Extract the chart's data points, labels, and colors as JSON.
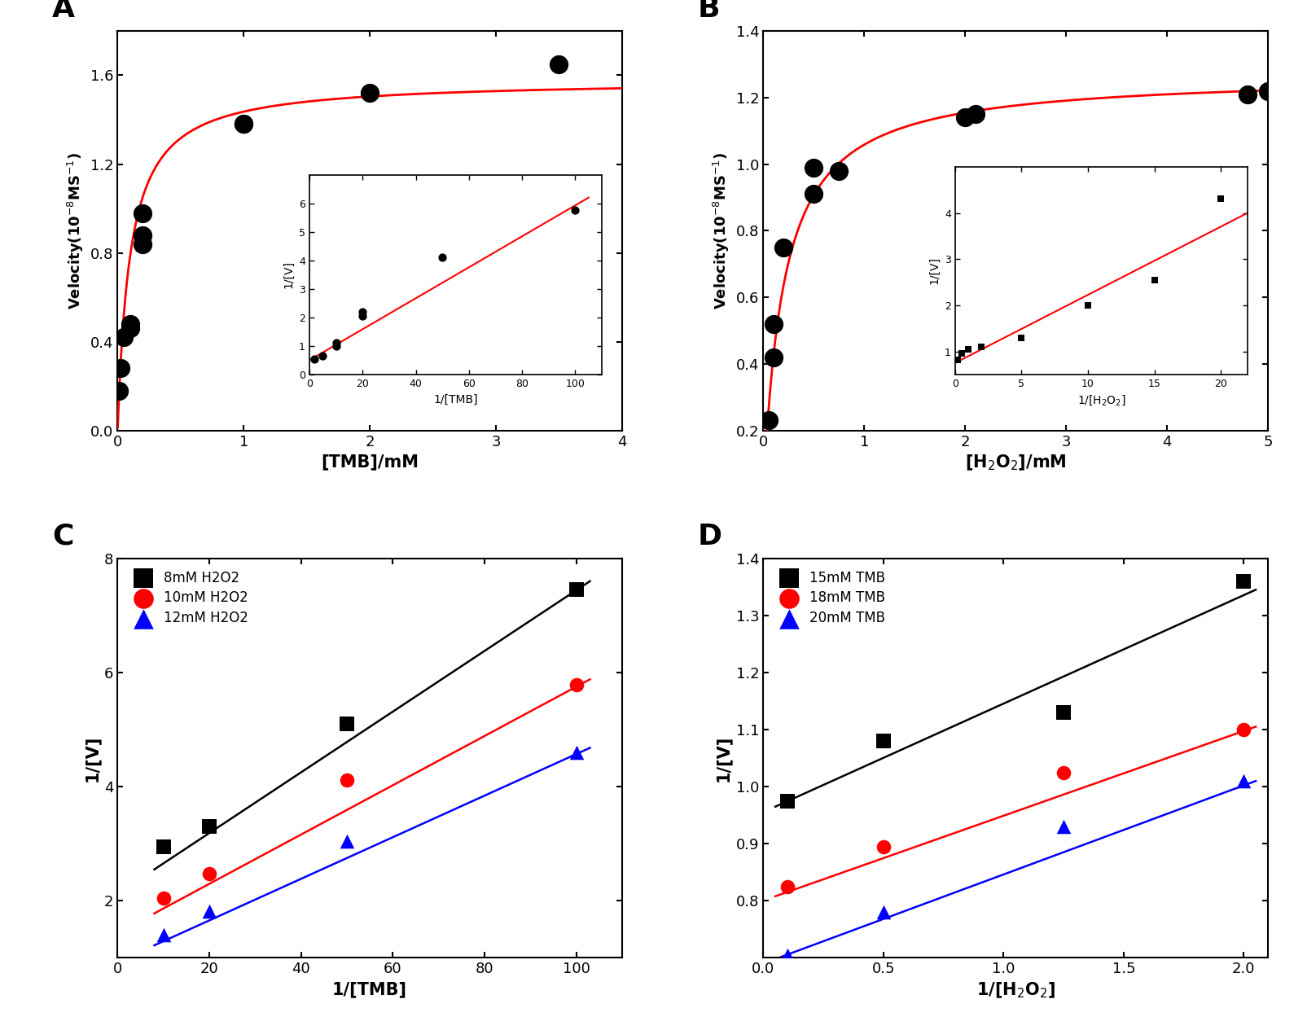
{
  "panel_A": {
    "label": "A",
    "scatter_x": [
      0.01,
      0.02,
      0.05,
      0.1,
      0.1,
      0.2,
      0.2,
      0.2,
      1.0,
      1.0,
      2.0,
      3.5
    ],
    "scatter_y": [
      0.18,
      0.28,
      0.42,
      0.46,
      0.48,
      0.84,
      0.88,
      0.98,
      1.38,
      1.38,
      1.52,
      1.65
    ],
    "curve_Vmax": 1.58,
    "curve_Km": 0.1,
    "xlabel": "[TMB]/mM",
    "ylabel": "Velocity(10$^{-8}$MS$^{-1}$)",
    "xlim": [
      0,
      4
    ],
    "ylim": [
      0.0,
      1.8
    ],
    "xticks": [
      0,
      1,
      2,
      3,
      4
    ],
    "yticks": [
      0.0,
      0.4,
      0.8,
      1.2,
      1.6
    ],
    "inset": {
      "scatter_x": [
        2,
        5,
        10,
        10,
        20,
        20,
        50,
        100
      ],
      "scatter_y": [
        0.55,
        0.65,
        1.0,
        1.1,
        2.05,
        2.2,
        4.1,
        5.75
      ],
      "line_x": [
        0,
        105
      ],
      "line_y": [
        0.5,
        6.2
      ],
      "xlabel": "1/[TMB]",
      "ylabel": "1/[V]",
      "xlim": [
        0,
        110
      ],
      "ylim": [
        0,
        7
      ],
      "xticks": [
        0,
        20,
        40,
        60,
        80,
        100
      ],
      "yticks": [
        0,
        1,
        2,
        3,
        4,
        5,
        6
      ]
    }
  },
  "panel_B": {
    "label": "B",
    "scatter_x": [
      0.05,
      0.1,
      0.1,
      0.2,
      0.5,
      0.5,
      0.75,
      2.0,
      2.1,
      4.8,
      5.0
    ],
    "scatter_y": [
      0.23,
      0.42,
      0.52,
      0.75,
      0.91,
      0.99,
      0.98,
      1.14,
      1.15,
      1.21,
      1.22
    ],
    "curve_Vmax": 1.27,
    "curve_Km": 0.2,
    "xlabel": "[H$_2$O$_2$]/mM",
    "ylabel": "Velocity(10$^{-8}$MS$^{-1}$)",
    "xlim": [
      0,
      5
    ],
    "ylim": [
      0.2,
      1.4
    ],
    "xticks": [
      0,
      1,
      2,
      3,
      4,
      5
    ],
    "yticks": [
      0.2,
      0.4,
      0.6,
      0.8,
      1.0,
      1.2,
      1.4
    ],
    "inset": {
      "scatter_x": [
        0.2,
        0.5,
        1.0,
        2.0,
        5.0,
        10.0,
        15.0,
        20.0
      ],
      "scatter_y": [
        0.82,
        0.95,
        1.05,
        1.1,
        1.3,
        2.0,
        2.55,
        4.3
      ],
      "line_x": [
        0,
        22
      ],
      "line_y": [
        0.75,
        4.0
      ],
      "xlabel": "1/[H$_2$O$_2$]",
      "ylabel": "1/[V]",
      "xlim": [
        0,
        22
      ],
      "ylim": [
        0.5,
        5
      ],
      "xticks": [
        0,
        5,
        10,
        15,
        20
      ],
      "yticks": [
        1,
        2,
        3,
        4
      ]
    }
  },
  "panel_C": {
    "label": "C",
    "series": [
      {
        "label": "8mM H2O2",
        "color": "black",
        "marker": "s",
        "x": [
          10,
          20,
          50,
          100
        ],
        "y": [
          2.95,
          3.3,
          5.1,
          7.45
        ],
        "line_x": [
          8,
          103
        ],
        "line_y": [
          2.55,
          7.6
        ]
      },
      {
        "label": "10mM H2O2",
        "color": "red",
        "marker": "o",
        "x": [
          10,
          20,
          50,
          100
        ],
        "y": [
          2.05,
          2.48,
          4.12,
          5.78
        ],
        "line_x": [
          8,
          103
        ],
        "line_y": [
          1.78,
          5.88
        ]
      },
      {
        "label": "12mM H2O2",
        "color": "blue",
        "marker": "^",
        "x": [
          10,
          20,
          50,
          100
        ],
        "y": [
          1.4,
          1.82,
          3.05,
          4.6
        ],
        "line_x": [
          8,
          103
        ],
        "line_y": [
          1.22,
          4.68
        ]
      }
    ],
    "xlabel": "1/[TMB]",
    "ylabel": "1/[V]",
    "xlim": [
      0,
      110
    ],
    "ylim": [
      1,
      8
    ],
    "xticks": [
      0,
      20,
      40,
      60,
      80,
      100
    ],
    "yticks": [
      2,
      4,
      6,
      8
    ]
  },
  "panel_D": {
    "label": "D",
    "series": [
      {
        "label": "15mM TMB",
        "color": "black",
        "marker": "s",
        "x": [
          0.1,
          0.5,
          1.25,
          2.0
        ],
        "y": [
          0.975,
          1.08,
          1.13,
          1.36
        ],
        "line_x": [
          0.05,
          2.05
        ],
        "line_y": [
          0.965,
          1.345
        ]
      },
      {
        "label": "18mM TMB",
        "color": "red",
        "marker": "o",
        "x": [
          0.1,
          0.5,
          1.25,
          2.0
        ],
        "y": [
          0.825,
          0.895,
          1.025,
          1.1
        ],
        "line_x": [
          0.05,
          2.05
        ],
        "line_y": [
          0.808,
          1.105
        ]
      },
      {
        "label": "20mM TMB",
        "color": "blue",
        "marker": "^",
        "x": [
          0.1,
          0.5,
          1.25,
          2.0
        ],
        "y": [
          0.705,
          0.78,
          0.93,
          1.01
        ],
        "line_x": [
          0.05,
          2.05
        ],
        "line_y": [
          0.698,
          1.01
        ]
      }
    ],
    "xlabel": "1/[H$_2$O$_2$]",
    "ylabel": "1/[V]",
    "xlim": [
      0.0,
      2.1
    ],
    "ylim": [
      0.7,
      1.4
    ],
    "xticks": [
      0.0,
      0.5,
      1.0,
      1.5,
      2.0
    ],
    "yticks": [
      0.8,
      0.9,
      1.0,
      1.1,
      1.2,
      1.3,
      1.4
    ]
  }
}
